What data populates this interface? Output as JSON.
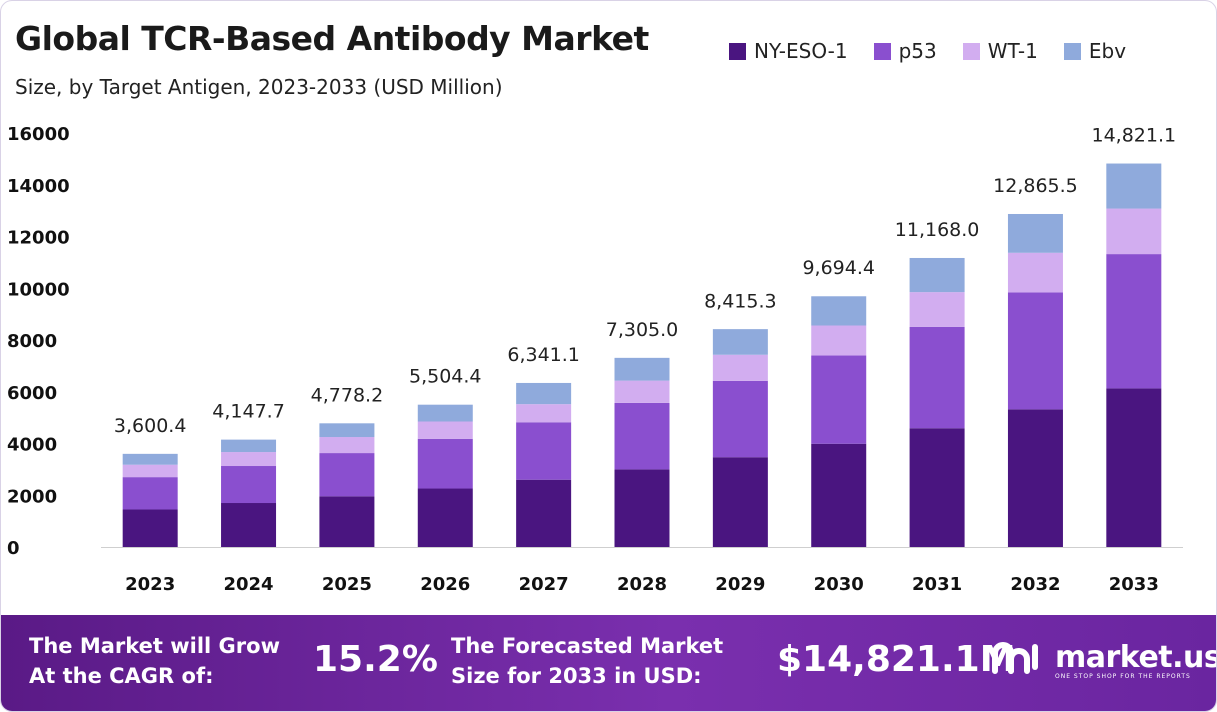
{
  "header": {
    "title": "Global TCR-Based Antibody Market",
    "subtitle": "Size, by Target Antigen, 2023-2033 (USD Million)"
  },
  "legend": [
    {
      "label": "NY-ESO-1",
      "color": "#4a1580"
    },
    {
      "label": "p53",
      "color": "#8a4fcf"
    },
    {
      "label": "WT-1",
      "color": "#d2adf0"
    },
    {
      "label": "Ebv",
      "color": "#8faadc"
    }
  ],
  "chart_data": {
    "type": "bar",
    "stacked": true,
    "categories": [
      "2023",
      "2024",
      "2025",
      "2026",
      "2027",
      "2028",
      "2029",
      "2030",
      "2031",
      "2032",
      "2033"
    ],
    "series": [
      {
        "name": "NY-ESO-1",
        "color": "#4a1580",
        "values": [
          1450,
          1700,
          1960,
          2260,
          2600,
          3000,
          3470,
          3990,
          4590,
          5320,
          6130
        ]
      },
      {
        "name": "p53",
        "color": "#8a4fcf",
        "values": [
          1250,
          1430,
          1670,
          1920,
          2220,
          2570,
          2950,
          3410,
          3920,
          4520,
          5190
        ]
      },
      {
        "name": "WT-1",
        "color": "#d2adf0",
        "values": [
          480,
          540,
          620,
          670,
          700,
          860,
          1010,
          1160,
          1340,
          1530,
          1760
        ]
      },
      {
        "name": "Ebv",
        "color": "#8faadc",
        "values": [
          420,
          480,
          530,
          650,
          820,
          880,
          990,
          1130,
          1320,
          1500,
          1740
        ]
      }
    ],
    "totals": [
      "3,600.4",
      "4,147.7",
      "4,778.2",
      "5,504.4",
      "6,341.1",
      "7,305.0",
      "8,415.3",
      "9,694.4",
      "11,168.0",
      "12,865.5",
      "14,821.1"
    ],
    "total_values": [
      3600.4,
      4147.7,
      4778.2,
      5504.4,
      6341.1,
      7305.0,
      8415.3,
      9694.4,
      11168.0,
      12865.5,
      14821.1
    ],
    "y_ticks": [
      0,
      2000,
      4000,
      6000,
      8000,
      10000,
      12000,
      14000,
      16000
    ],
    "ylim": [
      0,
      16000
    ],
    "xlabel": "",
    "ylabel": "",
    "grid": false,
    "legend_position": "top-right"
  },
  "banner": {
    "cagr_text_line1": "The Market will Grow",
    "cagr_text_line2": "At the CAGR of:",
    "cagr_value": "15.2%",
    "forecast_text_line1": "The Forecasted Market",
    "forecast_text_line2": "Size for 2033 in USD:",
    "forecast_value": "$14,821.1M",
    "brand_name": "market.us",
    "brand_tagline": "ONE STOP SHOP FOR THE REPORTS"
  }
}
